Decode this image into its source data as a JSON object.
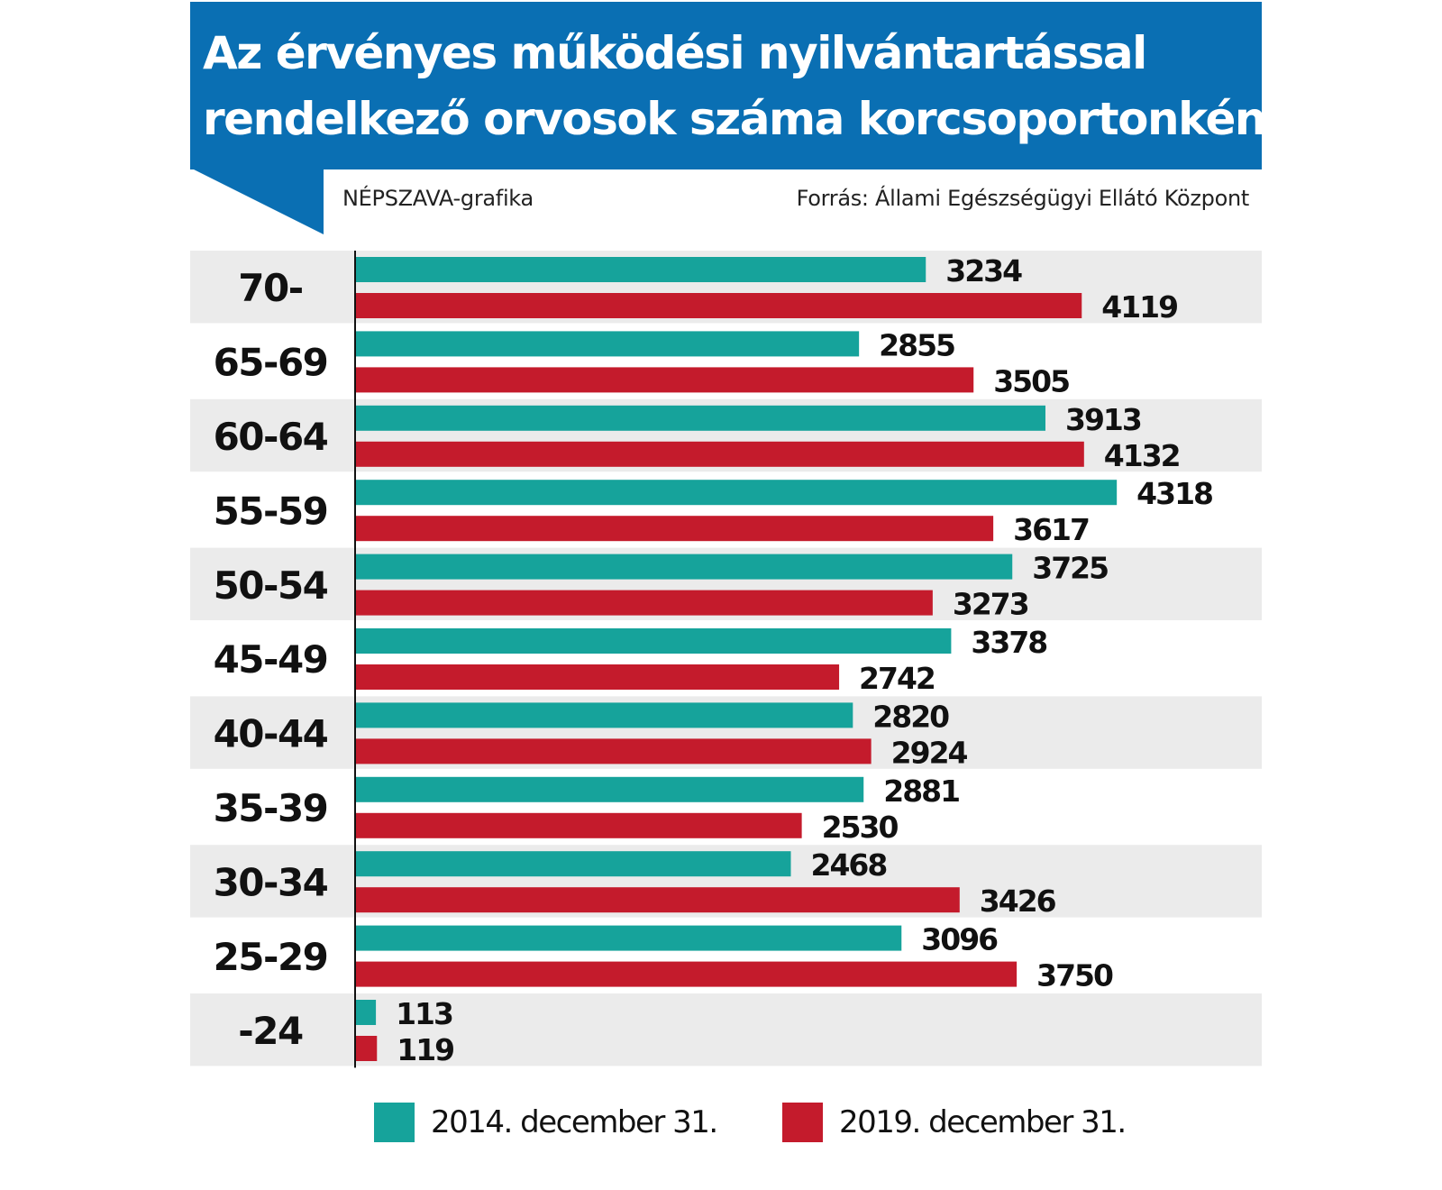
{
  "title": {
    "line1": "Az érvényes működési nyilvántartással",
    "line2": "rendelkező orvosok száma korcsoportonként"
  },
  "credit": "NÉPSZAVA-grafika",
  "source": "Forrás: Állami Egészségügyi Ellátó Központ",
  "colors": {
    "title_bg": "#0a6fb3",
    "band": "#ebebeb",
    "series_2014": "#16a39b",
    "series_2019": "#c41b2c"
  },
  "chart_data": {
    "type": "bar",
    "orientation": "horizontal",
    "categories": [
      "70-",
      "65-69",
      "60-64",
      "55-59",
      "50-54",
      "45-49",
      "40-44",
      "35-39",
      "30-34",
      "25-29",
      "-24"
    ],
    "series": [
      {
        "name": "2014. december 31.",
        "values": [
          3234,
          2855,
          3913,
          4318,
          3725,
          3378,
          2820,
          2881,
          2468,
          3096,
          113
        ]
      },
      {
        "name": "2019. december 31.",
        "values": [
          4119,
          3505,
          4132,
          3617,
          3273,
          2742,
          2924,
          2530,
          3426,
          3750,
          119
        ]
      }
    ],
    "xlim": [
      0,
      5000
    ],
    "grid": false,
    "legend": "bottom"
  },
  "legend": {
    "item1": "2014. december 31.",
    "item2": "2019. december 31."
  }
}
